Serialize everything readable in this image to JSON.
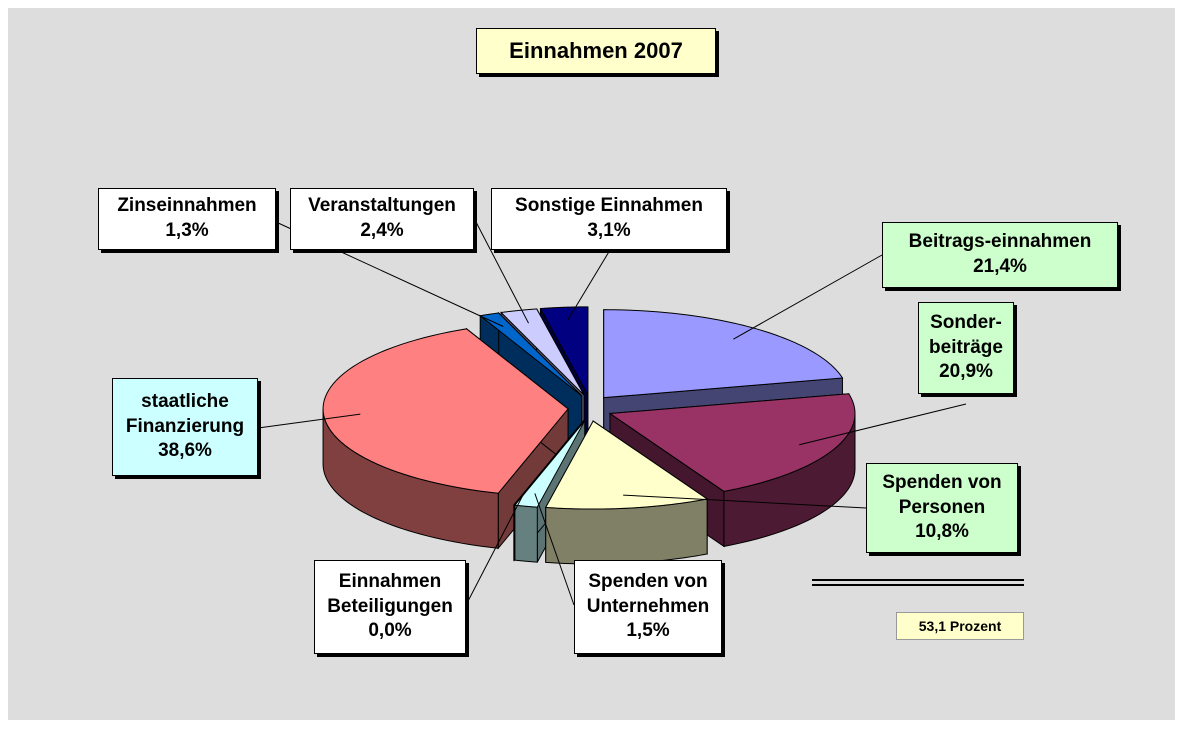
{
  "chart_data": {
    "type": "pie",
    "title": "Einnahmen 2007",
    "categories": [
      "Beitrags-einnahmen",
      "Sonder-beiträge",
      "Spenden von Personen",
      "Spenden von Unternehmen",
      "Einnahmen Beteiligungen",
      "staatliche Finanzierung",
      "Zinseinnahmen",
      "Veranstaltungen",
      "Sonstige Einnahmen"
    ],
    "values": [
      21.4,
      20.9,
      10.8,
      1.5,
      0.0,
      38.6,
      1.3,
      2.4,
      3.1
    ],
    "value_labels": [
      "21,4%",
      "20,9%",
      "10,8%",
      "1,5%",
      "0,0%",
      "38,6%",
      "1,3%",
      "2,4%",
      "3,1%"
    ],
    "colors": [
      "#9999ff",
      "#993366",
      "#ffffcc",
      "#ccffff",
      "#660066",
      "#ff8080",
      "#0066cc",
      "#ccccff",
      "#000080"
    ],
    "label_colors": [
      "#ccffcc",
      "#ccffcc",
      "#ccffcc",
      "#ffffff",
      "#ffffff",
      "#ccffff",
      "#ffffff",
      "#ffffff",
      "#ffffff"
    ],
    "annotation": "53,1 Prozent"
  }
}
